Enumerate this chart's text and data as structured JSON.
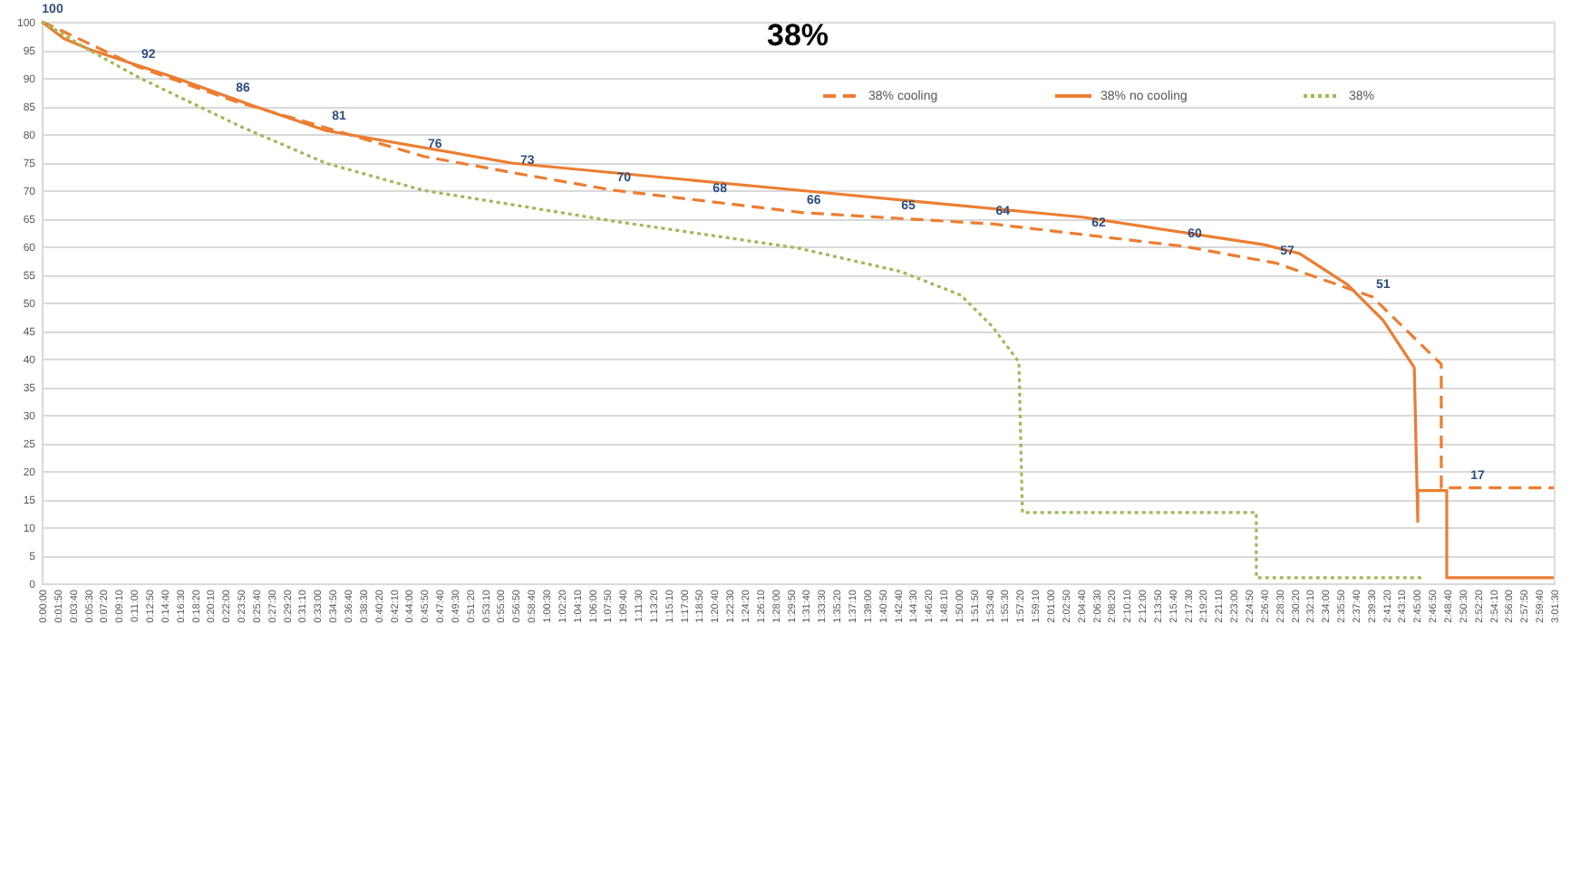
{
  "chart_data": {
    "type": "line",
    "title": "38%",
    "xlim": [
      0,
      3.025
    ],
    "xticks": [
      {
        "value": 0,
        "label": "0:00:00"
      },
      {
        "value": 0.0306,
        "label": "0:01:50"
      },
      {
        "value": 0.0611,
        "label": "0:03:40"
      },
      {
        "value": 0.0917,
        "label": "0:05:30"
      },
      {
        "value": 0.1222,
        "label": "0:07:20"
      },
      {
        "value": 0.1528,
        "label": "0:09:10"
      },
      {
        "value": 0.1833,
        "label": "0:11:00"
      },
      {
        "value": 0.2139,
        "label": "0:12:50"
      },
      {
        "value": 0.2444,
        "label": "0:14:40"
      },
      {
        "value": 0.275,
        "label": "0:16:30"
      },
      {
        "value": 0.3056,
        "label": "0:18:20"
      },
      {
        "value": 0.3361,
        "label": "0:20:10"
      },
      {
        "value": 0.3667,
        "label": "0:22:00"
      },
      {
        "value": 0.3972,
        "label": "0:23:50"
      },
      {
        "value": 0.4278,
        "label": "0:25:40"
      },
      {
        "value": 0.4583,
        "label": "0:27:30"
      },
      {
        "value": 0.4889,
        "label": "0:29:20"
      },
      {
        "value": 0.5194,
        "label": "0:31:10"
      },
      {
        "value": 0.55,
        "label": "0:33:00"
      },
      {
        "value": 0.5806,
        "label": "0:34:50"
      },
      {
        "value": 0.6111,
        "label": "0:36:40"
      },
      {
        "value": 0.6417,
        "label": "0:38:30"
      },
      {
        "value": 0.6722,
        "label": "0:40:20"
      },
      {
        "value": 0.7028,
        "label": "0:42:10"
      },
      {
        "value": 0.7333,
        "label": "0:44:00"
      },
      {
        "value": 0.7639,
        "label": "0:45:50"
      },
      {
        "value": 0.7944,
        "label": "0:47:40"
      },
      {
        "value": 0.825,
        "label": "0:49:30"
      },
      {
        "value": 0.8556,
        "label": "0:51:20"
      },
      {
        "value": 0.8861,
        "label": "0:53:10"
      },
      {
        "value": 0.9167,
        "label": "0:55:00"
      },
      {
        "value": 0.9472,
        "label": "0:56:50"
      },
      {
        "value": 0.9778,
        "label": "0:58:40"
      },
      {
        "value": 1.0083,
        "label": "1:00:30"
      },
      {
        "value": 1.0389,
        "label": "1:02:20"
      },
      {
        "value": 1.0694,
        "label": "1:04:10"
      },
      {
        "value": 1.1,
        "label": "1:06:00"
      },
      {
        "value": 1.1306,
        "label": "1:07:50"
      },
      {
        "value": 1.1611,
        "label": "1:09:40"
      },
      {
        "value": 1.1917,
        "label": "1:11:30"
      },
      {
        "value": 1.2222,
        "label": "1:13:20"
      },
      {
        "value": 1.2528,
        "label": "1:15:10"
      },
      {
        "value": 1.2833,
        "label": "1:17:00"
      },
      {
        "value": 1.3139,
        "label": "1:18:50"
      },
      {
        "value": 1.3444,
        "label": "1:20:40"
      },
      {
        "value": 1.375,
        "label": "1:22:30"
      },
      {
        "value": 1.4056,
        "label": "1:24:20"
      },
      {
        "value": 1.4361,
        "label": "1:26:10"
      },
      {
        "value": 1.4667,
        "label": "1:28:00"
      },
      {
        "value": 1.4972,
        "label": "1:29:50"
      },
      {
        "value": 1.5278,
        "label": "1:31:40"
      },
      {
        "value": 1.5583,
        "label": "1:33:30"
      },
      {
        "value": 1.5889,
        "label": "1:35:20"
      },
      {
        "value": 1.6194,
        "label": "1:37:10"
      },
      {
        "value": 1.65,
        "label": "1:39:00"
      },
      {
        "value": 1.6806,
        "label": "1:40:50"
      },
      {
        "value": 1.7111,
        "label": "1:42:40"
      },
      {
        "value": 1.7417,
        "label": "1:44:30"
      },
      {
        "value": 1.7722,
        "label": "1:46:20"
      },
      {
        "value": 1.8028,
        "label": "1:48:10"
      },
      {
        "value": 1.8333,
        "label": "1:50:00"
      },
      {
        "value": 1.8639,
        "label": "1:51:50"
      },
      {
        "value": 1.8944,
        "label": "1:53:40"
      },
      {
        "value": 1.925,
        "label": "1:55:30"
      },
      {
        "value": 1.9556,
        "label": "1:57:20"
      },
      {
        "value": 1.9861,
        "label": "1:59:10"
      },
      {
        "value": 2.0167,
        "label": "2:01:00"
      },
      {
        "value": 2.0472,
        "label": "2:02:50"
      },
      {
        "value": 2.0778,
        "label": "2:04:40"
      },
      {
        "value": 2.1083,
        "label": "2:06:30"
      },
      {
        "value": 2.1389,
        "label": "2:08:20"
      },
      {
        "value": 2.1694,
        "label": "2:10:10"
      },
      {
        "value": 2.2,
        "label": "2:12:00"
      },
      {
        "value": 2.2306,
        "label": "2:13:50"
      },
      {
        "value": 2.2611,
        "label": "2:15:40"
      },
      {
        "value": 2.2917,
        "label": "2:17:30"
      },
      {
        "value": 2.3222,
        "label": "2:19:20"
      },
      {
        "value": 2.3528,
        "label": "2:21:10"
      },
      {
        "value": 2.3833,
        "label": "2:23:00"
      },
      {
        "value": 2.4139,
        "label": "2:24:50"
      },
      {
        "value": 2.4444,
        "label": "2:26:40"
      },
      {
        "value": 2.475,
        "label": "2:28:30"
      },
      {
        "value": 2.5056,
        "label": "2:30:20"
      },
      {
        "value": 2.5361,
        "label": "2:32:10"
      },
      {
        "value": 2.5667,
        "label": "2:34:00"
      },
      {
        "value": 2.5972,
        "label": "2:35:50"
      },
      {
        "value": 2.6278,
        "label": "2:37:40"
      },
      {
        "value": 2.6583,
        "label": "2:39:30"
      },
      {
        "value": 2.6889,
        "label": "2:41:20"
      },
      {
        "value": 2.7194,
        "label": "2:43:10"
      },
      {
        "value": 2.75,
        "label": "2:45:00"
      },
      {
        "value": 2.7806,
        "label": "2:46:50"
      },
      {
        "value": 2.8111,
        "label": "2:48:40"
      },
      {
        "value": 2.8417,
        "label": "2:50:30"
      },
      {
        "value": 2.8722,
        "label": "2:52:20"
      },
      {
        "value": 2.9028,
        "label": "2:54:10"
      },
      {
        "value": 2.9333,
        "label": "2:56:00"
      },
      {
        "value": 2.9639,
        "label": "2:57:50"
      },
      {
        "value": 2.9944,
        "label": "2:59:40"
      },
      {
        "value": 3.025,
        "label": "3:01:30"
      }
    ],
    "ylim": [
      0,
      100
    ],
    "yticks": [
      0,
      5,
      10,
      15,
      20,
      25,
      30,
      35,
      40,
      45,
      50,
      55,
      60,
      65,
      70,
      75,
      80,
      85,
      90,
      95,
      100
    ],
    "grid": "y",
    "legend": "top right",
    "series": [
      {
        "name": "38% cooling",
        "color": "#ed7d31",
        "line_style": "dashed",
        "x": [
          0,
          0.033,
          0.192,
          0.381,
          0.573,
          0.765,
          0.95,
          1.143,
          1.335,
          1.523,
          1.712,
          1.901,
          2.093,
          2.285,
          2.47,
          2.662,
          2.8,
          2.8,
          2.851,
          3.025
        ],
        "values": [
          100,
          98.7,
          92,
          86,
          81,
          76,
          73,
          70,
          68,
          66,
          65,
          64,
          62,
          60,
          57,
          51,
          39,
          17,
          17,
          17
        ],
        "value_labels": [
          "100",
          null,
          "92",
          "86",
          "81",
          "76",
          "73",
          "70",
          "68",
          "66",
          "65",
          "64",
          "62",
          "60",
          "57",
          "51",
          null,
          null,
          "17",
          null
        ]
      },
      {
        "name": "38% no cooling",
        "color": "#ed7d31",
        "line_style": "solid",
        "x": [
          0,
          0.044,
          0.098,
          0.268,
          0.424,
          0.569,
          0.943,
          1.513,
          2.082,
          2.445,
          2.517,
          2.612,
          2.684,
          2.746,
          2.753,
          2.753,
          2.811,
          2.811,
          3.025
        ],
        "values": [
          100,
          97,
          95,
          90,
          85,
          80.6,
          74.8,
          70,
          65.2,
          60.3,
          58.7,
          53.2,
          46.8,
          38.4,
          11,
          16.5,
          16.5,
          1,
          1
        ]
      },
      {
        "name": "38%",
        "color": "#9bbb59",
        "line_style": "dotted",
        "x": [
          0,
          0.098,
          0.196,
          0.399,
          0.569,
          0.762,
          0.943,
          1.143,
          1.513,
          1.719,
          1.839,
          1.901,
          1.955,
          1.962,
          2.43,
          2.43,
          2.764
        ],
        "values": [
          100,
          94.8,
          90,
          81.3,
          74.8,
          70,
          67.4,
          64.5,
          59.7,
          55.5,
          51.3,
          45.8,
          39.4,
          12.6,
          12.6,
          1,
          1
        ]
      }
    ]
  }
}
